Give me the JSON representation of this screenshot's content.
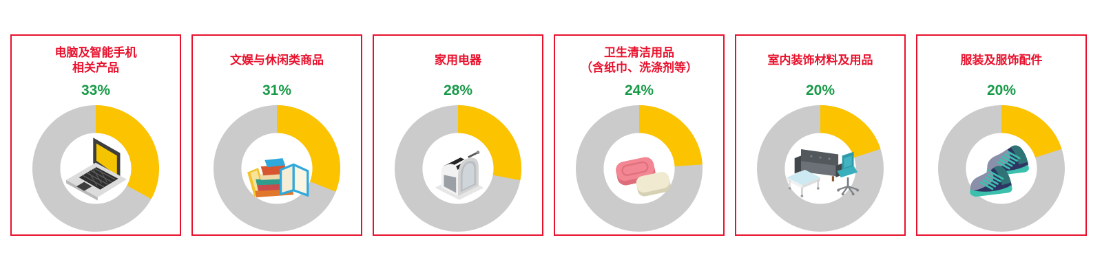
{
  "page": {
    "background": "#FFFFFF",
    "description_visible_elements": "six red-bordered panels, each with a red category title, a green percentage, and a yellow/gray donut chart with a product illustration in the center"
  },
  "colors": {
    "accent_red": "#E8112D",
    "percent_green": "#179A48",
    "donut_filled_yellow": "#FCC300",
    "donut_remainder_gray": "#CBCBCB",
    "panel_background": "#FFFFFF"
  },
  "chart_data": {
    "type": "pie",
    "variant": "donut-small-multiples",
    "unit": "%",
    "start_angle_deg": 0,
    "direction": "clockwise",
    "legend_position": "none",
    "grid": false,
    "segment_colors": {
      "filled": "#FCC300",
      "remainder": "#CBCBCB"
    },
    "categories": [
      "电脑及智能手机\n相关产品",
      "文娱与休闲类商品",
      "家用电器",
      "卫生清洁用品\n（含纸巾、洗涤剂等）",
      "室内装饰材料及用品",
      "服装及服饰配件"
    ],
    "values": [
      33,
      31,
      28,
      24,
      20,
      20
    ],
    "charts": [
      {
        "title": "电脑及智能手机\n相关产品",
        "value": 33,
        "value_label": "33%",
        "icon": "laptop-icon"
      },
      {
        "title": "文娱与休闲类商品",
        "value": 31,
        "value_label": "31%",
        "icon": "books-icon"
      },
      {
        "title": "家用电器",
        "value": 28,
        "value_label": "28%",
        "icon": "toaster-icon"
      },
      {
        "title": "卫生清洁用品\n（含纸巾、洗涤剂等）",
        "value": 24,
        "value_label": "24%",
        "icon": "soap-icon"
      },
      {
        "title": "室内装饰材料及用品",
        "value": 20,
        "value_label": "20%",
        "icon": "furniture-icon"
      },
      {
        "title": "服装及服饰配件",
        "value": 20,
        "value_label": "20%",
        "icon": "sneakers-icon"
      }
    ]
  }
}
